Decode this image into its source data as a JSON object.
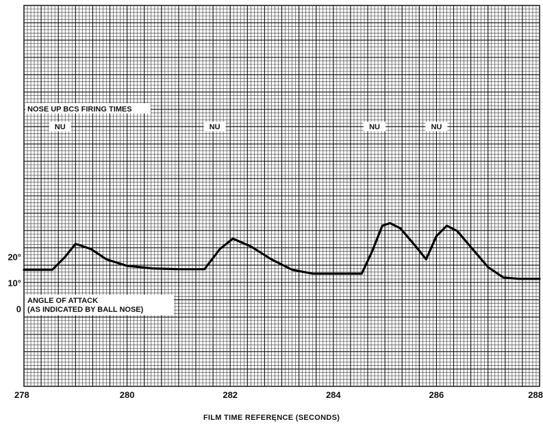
{
  "chart_data": {
    "type": "line",
    "title": "",
    "xlabel": "FILM TIME REFERĘNCE (SECONDS)",
    "ylabel": "ANGLE OF ATTACK",
    "ylabel_note": "(AS INDICATED BY BALL NOSE)",
    "xlim": [
      278,
      288
    ],
    "ylim": [
      -30,
      117
    ],
    "x_ticks": [
      "278",
      "280",
      "282",
      "284",
      "286",
      "288"
    ],
    "y_ticks": [
      "20°",
      "10°",
      "0"
    ],
    "y_tick_values": [
      20,
      10,
      0
    ],
    "grid": true,
    "firing_label": "NOSE UP BCS  FIRING TIMES",
    "firing_markers": [
      {
        "label": "NU",
        "x": 278.7
      },
      {
        "label": "NU",
        "x": 281.7
      },
      {
        "label": "NU",
        "x": 284.8
      },
      {
        "label": "NU",
        "x": 286.0
      }
    ],
    "series": [
      {
        "x": [
          278.0,
          278.55,
          278.8,
          279.0,
          279.3,
          279.6,
          280.0,
          280.5,
          281.0,
          281.5,
          281.8,
          282.05,
          282.4,
          282.8,
          283.2,
          283.6,
          284.0,
          284.55,
          284.75,
          284.95,
          285.1,
          285.3,
          285.6,
          285.8,
          286.0,
          286.2,
          286.4,
          286.7,
          287.0,
          287.3,
          287.6,
          288.0
        ],
        "y": [
          15,
          15,
          20,
          25,
          23,
          19,
          16.5,
          15.5,
          15.2,
          15.2,
          23,
          27,
          24,
          19,
          15,
          13.5,
          13.5,
          13.5,
          22,
          32,
          33,
          31,
          24,
          19,
          28,
          32,
          30,
          23,
          16,
          12,
          11.5,
          11.5
        ]
      }
    ]
  }
}
